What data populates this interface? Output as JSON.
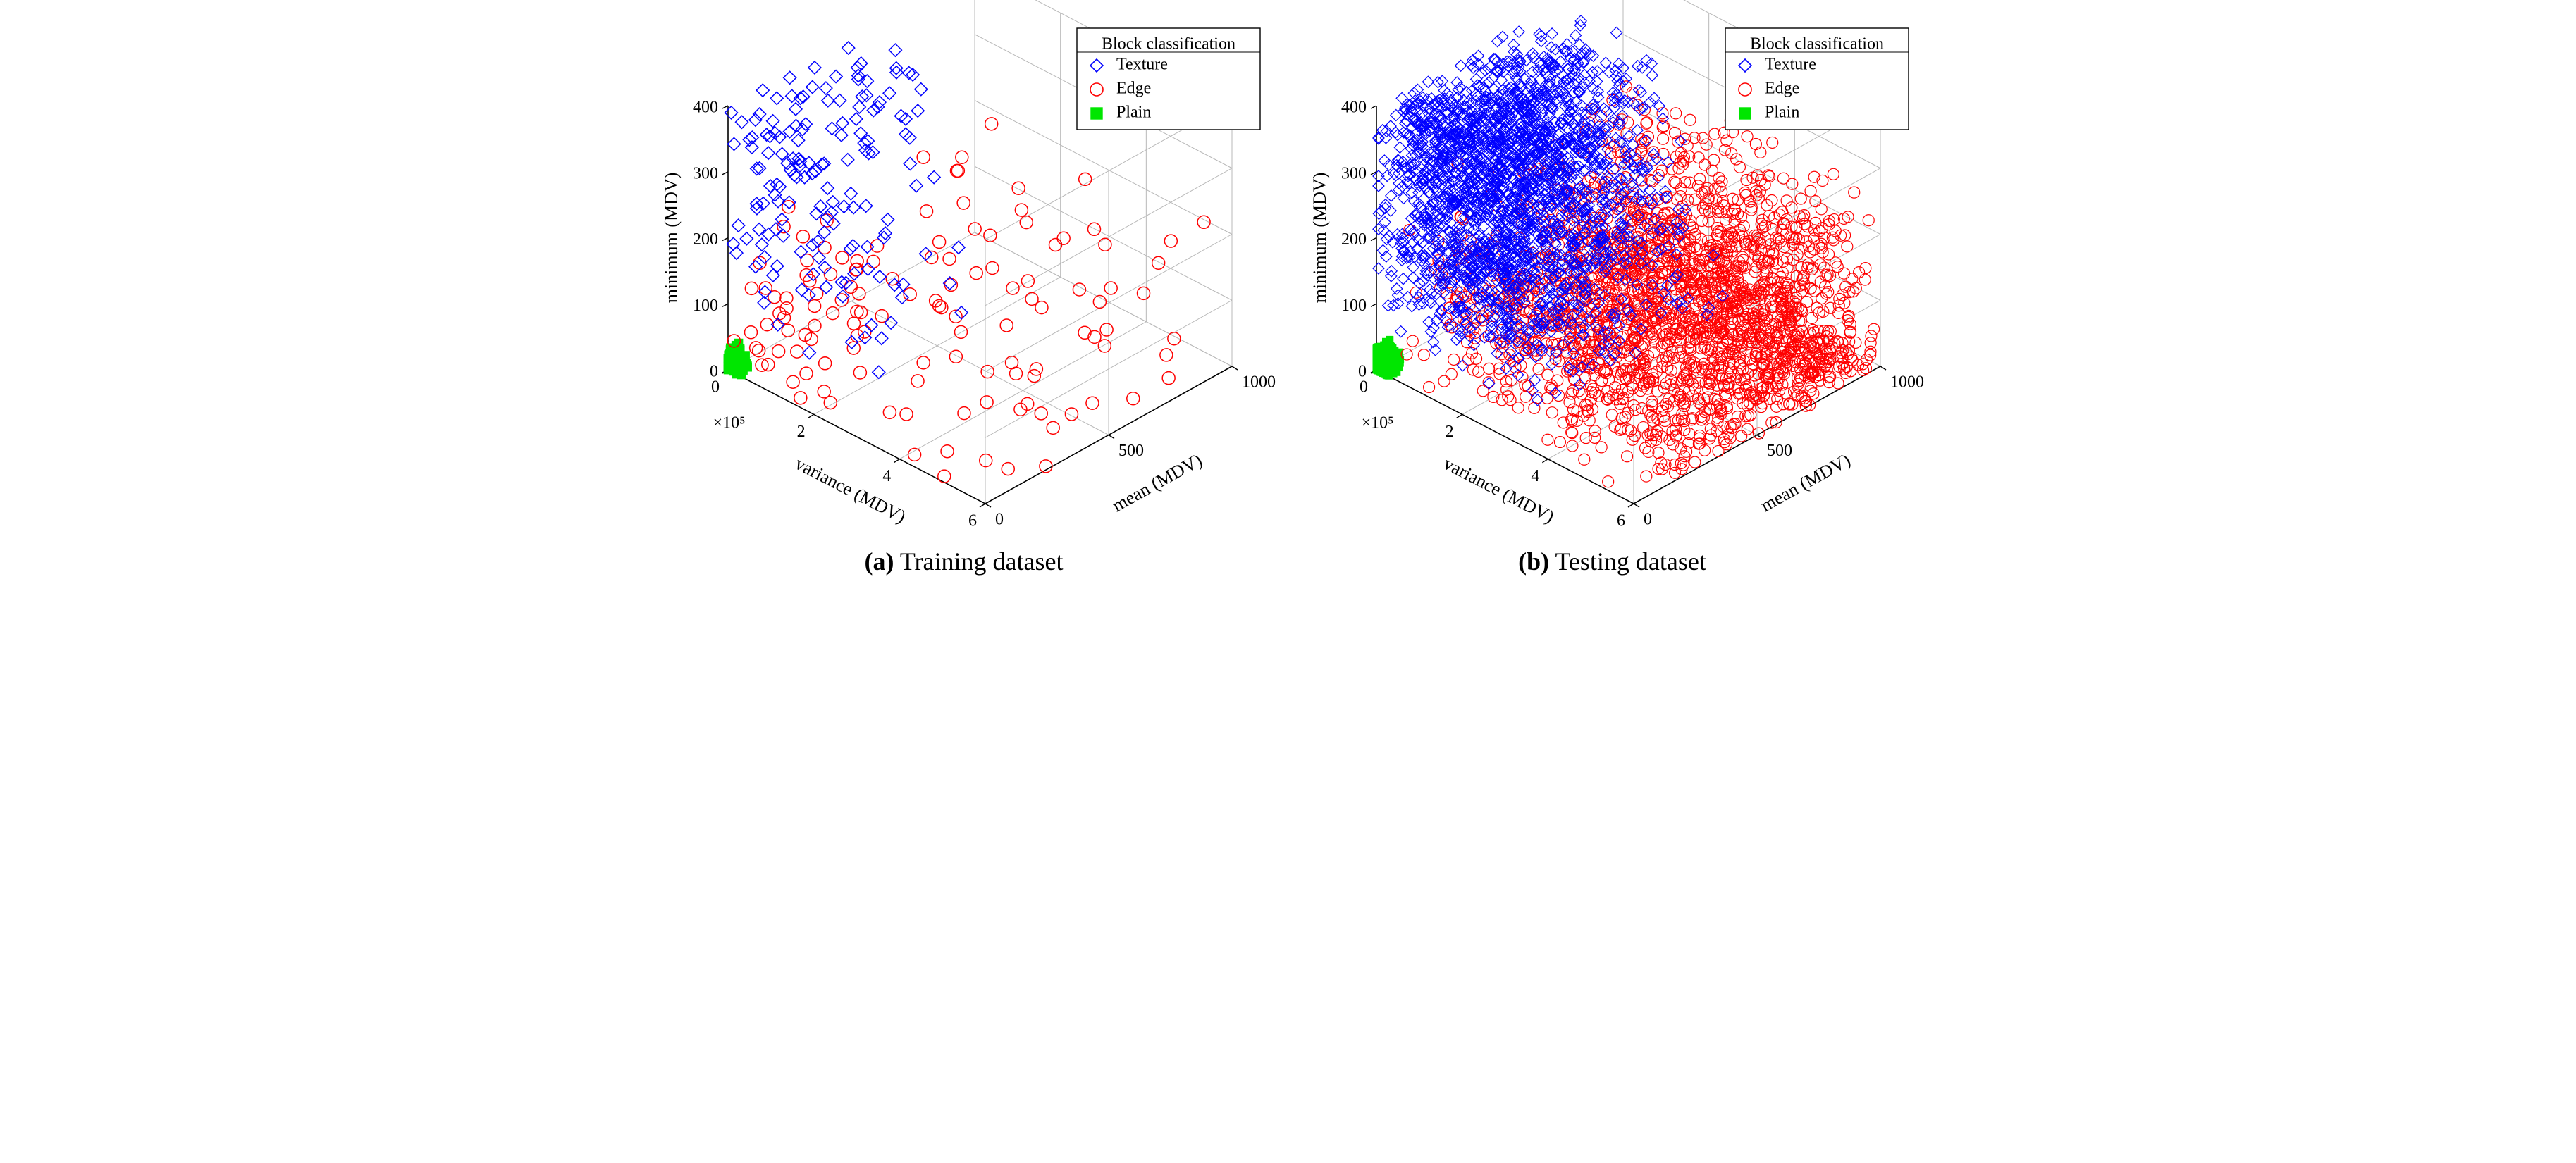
{
  "figure": {
    "background_color": "#ffffff",
    "panels": [
      {
        "id": "a",
        "caption_bold": "(a)",
        "caption_rest": " Training dataset",
        "chart": {
          "type": "scatter3d",
          "z_axis": {
            "label": "minimum (MDV)",
            "min": 0,
            "max": 400,
            "ticks": [
              0,
              100,
              200,
              300,
              400
            ]
          },
          "x_axis": {
            "label": "variance (MDV)",
            "exponent_label": "×10⁵",
            "min": 0,
            "max": 6,
            "ticks": [
              0,
              2,
              4,
              6
            ]
          },
          "y_axis": {
            "label": "mean (MDV)",
            "min": 0,
            "max": 1000,
            "ticks": [
              0,
              500,
              1000
            ]
          },
          "grid_color": "#b8b8b8",
          "axis_color": "#000000",
          "tick_fontsize": 24,
          "label_fontsize": 26,
          "legend": {
            "title": "Block classification",
            "title_fontsize": 24,
            "item_fontsize": 24,
            "border_color": "#000000",
            "items": [
              {
                "marker": "diamond",
                "color": "#0000ff",
                "label": "Texture"
              },
              {
                "marker": "circle",
                "color": "#ff0000",
                "label": "Edge"
              },
              {
                "marker": "square",
                "color": "#00e600",
                "label": "Plain"
              }
            ]
          },
          "series": [
            {
              "name": "Texture",
              "marker": "diamond",
              "color": "#0000ff",
              "fill": "none",
              "stroke_width": 1.5,
              "size": 9,
              "n_points": 160,
              "region": "texture_sparse"
            },
            {
              "name": "Edge",
              "marker": "circle",
              "color": "#ff0000",
              "fill": "none",
              "stroke_width": 1.5,
              "size": 9,
              "n_points": 130,
              "region": "edge_sparse"
            },
            {
              "name": "Plain",
              "marker": "square",
              "color": "#00e600",
              "fill": "#00e600",
              "stroke_width": 1.0,
              "size": 6,
              "n_points": 60,
              "region": "plain"
            }
          ]
        }
      },
      {
        "id": "b",
        "caption_bold": "(b)",
        "caption_rest": " Testing dataset",
        "chart": {
          "type": "scatter3d",
          "z_axis": {
            "label": "minimum (MDV)",
            "min": 0,
            "max": 400,
            "ticks": [
              0,
              100,
              200,
              300,
              400
            ]
          },
          "x_axis": {
            "label": "variance (MDV)",
            "exponent_label": "×10⁵",
            "min": 0,
            "max": 6,
            "ticks": [
              0,
              2,
              4,
              6
            ]
          },
          "y_axis": {
            "label": "mean (MDV)",
            "min": 0,
            "max": 1000,
            "ticks": [
              0,
              500,
              1000
            ]
          },
          "grid_color": "#b8b8b8",
          "axis_color": "#000000",
          "tick_fontsize": 24,
          "label_fontsize": 26,
          "legend": {
            "title": "Block classification",
            "title_fontsize": 24,
            "item_fontsize": 24,
            "border_color": "#000000",
            "items": [
              {
                "marker": "diamond",
                "color": "#0000ff",
                "label": "Texture"
              },
              {
                "marker": "circle",
                "color": "#ff0000",
                "label": "Edge"
              },
              {
                "marker": "square",
                "color": "#00e600",
                "label": "Plain"
              }
            ]
          },
          "series": [
            {
              "name": "Texture",
              "marker": "diamond",
              "color": "#0000ff",
              "fill": "none",
              "stroke_width": 1.2,
              "size": 8,
              "n_points": 2200,
              "region": "texture_dense"
            },
            {
              "name": "Edge",
              "marker": "circle",
              "color": "#ff0000",
              "fill": "none",
              "stroke_width": 1.2,
              "size": 8,
              "n_points": 2200,
              "region": "edge_dense"
            },
            {
              "name": "Plain",
              "marker": "square",
              "color": "#00e600",
              "fill": "#00e600",
              "stroke_width": 1.0,
              "size": 5,
              "n_points": 400,
              "region": "plain"
            }
          ]
        }
      }
    ],
    "geometry_note": "3D oblique projection: origin front-bottom-left; x-axis (variance) goes down-right; y-axis (mean) goes down-left then up-right along floor; z-axis (minimum) vertical."
  }
}
